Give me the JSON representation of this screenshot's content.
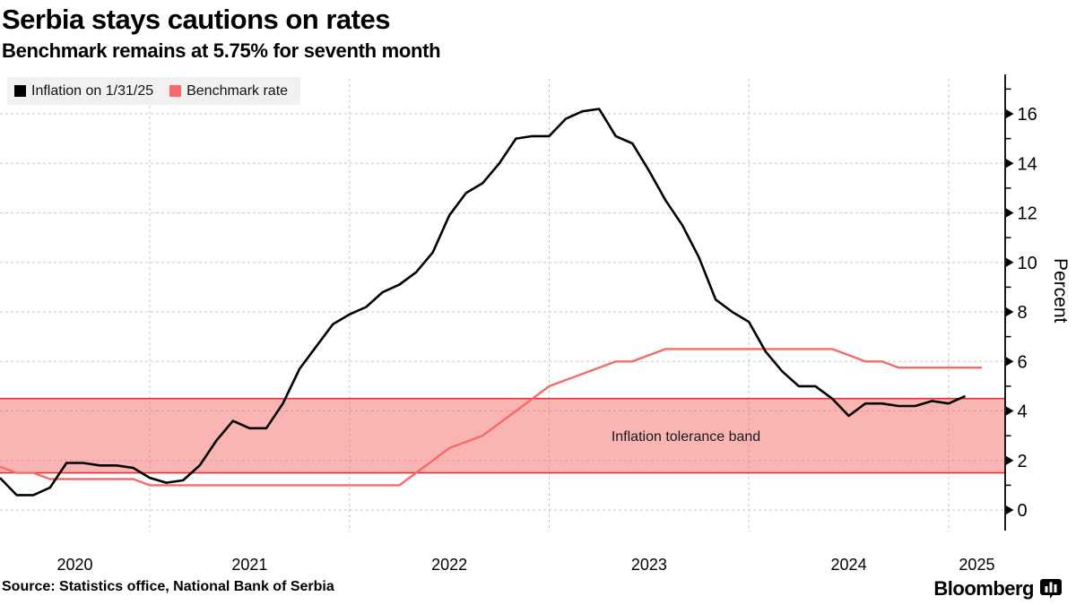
{
  "header": {
    "title": "Serbia stays cautions on rates",
    "subtitle": "Benchmark remains at 5.75% for seventh month"
  },
  "legend": [
    {
      "label": "Inflation on 1/31/25",
      "color": "#000000"
    },
    {
      "label": "Benchmark rate",
      "color": "#f76a6a"
    }
  ],
  "annotations": {
    "band_label": "Inflation tolerance band",
    "y_axis_label": "Percent"
  },
  "footer": {
    "source": "Source: Statistics office, National Bank of Serbia",
    "brand": "Bloomberg"
  },
  "colors": {
    "inflation_line": "#000000",
    "benchmark_line": "#f76a6a",
    "band_fill": "rgba(248,106,106,0.5)",
    "band_border": "#e23333",
    "gridline": "#c9c9c9",
    "axis": "#000000"
  },
  "chart_data": {
    "type": "line",
    "title": "Serbia stays cautions on rates",
    "subtitle": "Benchmark remains at 5.75% for seventh month",
    "ylabel": "Percent",
    "ylim": [
      0,
      16
    ],
    "y_ticks": [
      0,
      2,
      4,
      6,
      8,
      10,
      12,
      14,
      16
    ],
    "x_ticks": [
      "2020",
      "2021",
      "2022",
      "2023",
      "2024",
      "2025"
    ],
    "grid": true,
    "legend_position": "top-left",
    "start_month": "2020-03",
    "months_per_point": 1,
    "tolerance_band": {
      "low": 1.5,
      "high": 4.5,
      "label": "Inflation tolerance band"
    },
    "series": [
      {
        "name": "Inflation on 1/31/25",
        "color": "#000000",
        "last_date": "1/31/25",
        "values": [
          1.3,
          0.6,
          0.6,
          0.9,
          1.9,
          1.9,
          1.8,
          1.8,
          1.7,
          1.3,
          1.1,
          1.2,
          1.8,
          2.8,
          3.6,
          3.3,
          3.3,
          4.3,
          5.7,
          6.6,
          7.5,
          7.9,
          8.2,
          8.8,
          9.1,
          9.6,
          10.4,
          11.9,
          12.8,
          13.2,
          14.0,
          15.0,
          15.1,
          15.1,
          15.8,
          16.1,
          16.2,
          15.1,
          14.8,
          13.7,
          12.5,
          11.5,
          10.2,
          8.5,
          8.0,
          7.6,
          6.4,
          5.6,
          5.0,
          5.0,
          4.5,
          3.8,
          4.3,
          4.3,
          4.2,
          4.2,
          4.4,
          4.3,
          4.6
        ]
      },
      {
        "name": "Benchmark rate",
        "color": "#f76a6a",
        "values": [
          1.75,
          1.5,
          1.5,
          1.25,
          1.25,
          1.25,
          1.25,
          1.25,
          1.25,
          1.0,
          1.0,
          1.0,
          1.0,
          1.0,
          1.0,
          1.0,
          1.0,
          1.0,
          1.0,
          1.0,
          1.0,
          1.0,
          1.0,
          1.0,
          1.0,
          1.5,
          2.0,
          2.5,
          2.75,
          3.0,
          3.5,
          4.0,
          4.5,
          5.0,
          5.25,
          5.5,
          5.75,
          6.0,
          6.0,
          6.25,
          6.5,
          6.5,
          6.5,
          6.5,
          6.5,
          6.5,
          6.5,
          6.5,
          6.5,
          6.5,
          6.5,
          6.25,
          6.0,
          6.0,
          5.75,
          5.75,
          5.75,
          5.75,
          5.75,
          5.75
        ]
      }
    ]
  }
}
